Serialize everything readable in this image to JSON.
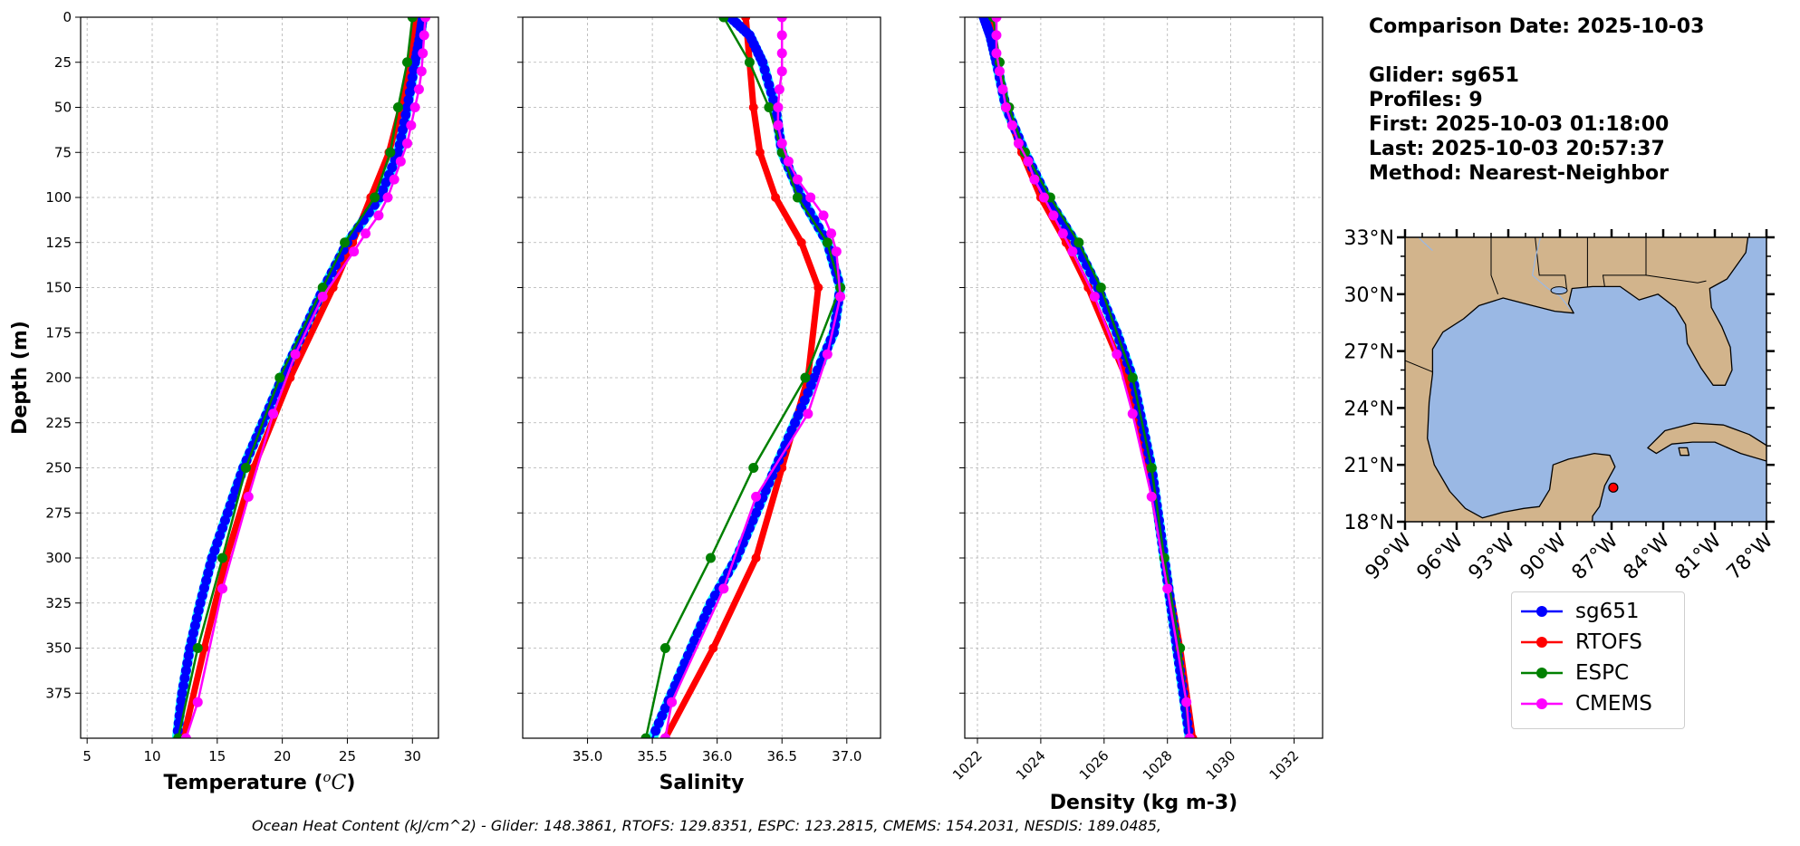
{
  "info": {
    "date_line": "Comparison Date: 2025-10-03",
    "glider_line": "Glider: sg651",
    "profiles_line": "Profiles: 9",
    "first_line": "First: 2025-10-03 01:18:00",
    "last_line": "Last: 2025-10-03 20:57:37",
    "method_line": "Method: Nearest-Neighbor"
  },
  "footer": "Ocean Heat Content (kJ/cm^2) - Glider: 148.3861,  RTOFS: 129.8351,  ESPC: 123.2815,  CMEMS: 154.2031,  NESDIS: 189.0485,",
  "colors": {
    "sg651": "#0000ff",
    "sg651_spread": "#00ffff",
    "RTOFS": "#ff0000",
    "ESPC": "#008000",
    "CMEMS": "#ff00ff",
    "land": "#d2b48c",
    "ocean": "#9ab8e4"
  },
  "legend": [
    {
      "label": "sg651",
      "color": "#0000ff"
    },
    {
      "label": "RTOFS",
      "color": "#ff0000"
    },
    {
      "label": "ESPC",
      "color": "#008000"
    },
    {
      "label": "CMEMS",
      "color": "#ff00ff"
    }
  ],
  "chart_data": [
    {
      "type": "line",
      "panel": "temperature",
      "xlabel": "Temperature (oC)",
      "ylabel": "Depth (m)",
      "xlim": [
        4.5,
        32
      ],
      "ylim": [
        400,
        0
      ],
      "xticks": [
        5,
        10,
        15,
        20,
        25,
        30
      ],
      "yticks": [
        0,
        25,
        50,
        75,
        100,
        125,
        150,
        175,
        200,
        225,
        250,
        275,
        300,
        325,
        350,
        375
      ],
      "grid": true,
      "series": [
        {
          "name": "sg651",
          "depth": [
            0,
            10,
            25,
            50,
            75,
            100,
            125,
            150,
            175,
            200,
            225,
            250,
            275,
            300,
            325,
            350,
            375,
            400
          ],
          "values": [
            30.8,
            30.6,
            30.2,
            29.6,
            28.9,
            27.5,
            25.0,
            23.2,
            21.6,
            20.0,
            18.5,
            17.0,
            15.8,
            14.6,
            13.7,
            12.9,
            12.3,
            11.9
          ]
        },
        {
          "name": "RTOFS",
          "depth": [
            0,
            25,
            50,
            75,
            100,
            125,
            150,
            200,
            250,
            300,
            350,
            400
          ],
          "values": [
            30.3,
            29.9,
            29.1,
            28.2,
            26.8,
            25.4,
            23.9,
            20.6,
            17.8,
            15.7,
            14.0,
            12.4
          ]
        },
        {
          "name": "ESPC",
          "depth": [
            0,
            25,
            50,
            75,
            100,
            125,
            150,
            200,
            250,
            300,
            350,
            400
          ],
          "values": [
            30.0,
            29.6,
            28.9,
            28.3,
            27.1,
            24.8,
            23.1,
            19.8,
            17.2,
            15.4,
            13.5,
            12.0
          ]
        },
        {
          "name": "CMEMS",
          "depth": [
            0,
            10,
            20,
            30,
            40,
            50,
            60,
            70,
            80,
            90,
            100,
            110,
            120,
            130,
            155,
            187,
            220,
            266,
            317,
            380,
            400
          ],
          "values": [
            31.0,
            30.9,
            30.8,
            30.7,
            30.5,
            30.2,
            29.9,
            29.6,
            29.1,
            28.6,
            28.1,
            27.4,
            26.4,
            25.5,
            23.1,
            21.0,
            19.3,
            17.4,
            15.4,
            13.5,
            12.6
          ]
        }
      ]
    },
    {
      "type": "line",
      "panel": "salinity",
      "xlabel": "Salinity",
      "xlim": [
        34.5,
        37.26
      ],
      "ylim": [
        400,
        0
      ],
      "xticks": [
        35.0,
        35.5,
        36.0,
        36.5,
        37.0
      ],
      "grid": true,
      "series": [
        {
          "name": "sg651",
          "depth": [
            0,
            10,
            25,
            50,
            75,
            100,
            125,
            150,
            175,
            200,
            225,
            250,
            275,
            300,
            325,
            350,
            375,
            400
          ],
          "values": [
            36.1,
            36.25,
            36.35,
            36.45,
            36.5,
            36.65,
            36.85,
            36.95,
            36.9,
            36.75,
            36.6,
            36.45,
            36.3,
            36.15,
            35.95,
            35.8,
            35.65,
            35.5
          ]
        },
        {
          "name": "RTOFS",
          "depth": [
            0,
            25,
            50,
            75,
            100,
            125,
            150,
            200,
            250,
            300,
            350,
            400
          ],
          "values": [
            36.22,
            36.25,
            36.28,
            36.33,
            36.45,
            36.65,
            36.78,
            36.7,
            36.5,
            36.3,
            35.97,
            35.6
          ]
        },
        {
          "name": "ESPC",
          "depth": [
            0,
            25,
            50,
            75,
            100,
            125,
            150,
            200,
            250,
            300,
            350,
            400
          ],
          "values": [
            36.05,
            36.25,
            36.4,
            36.5,
            36.62,
            36.85,
            36.95,
            36.68,
            36.28,
            35.95,
            35.6,
            35.45
          ]
        },
        {
          "name": "CMEMS",
          "depth": [
            0,
            10,
            20,
            30,
            40,
            50,
            60,
            70,
            80,
            90,
            100,
            110,
            120,
            130,
            155,
            187,
            220,
            266,
            317,
            380,
            400
          ],
          "values": [
            36.5,
            36.5,
            36.5,
            36.5,
            36.48,
            36.47,
            36.47,
            36.5,
            36.55,
            36.62,
            36.72,
            36.82,
            36.88,
            36.92,
            36.95,
            36.85,
            36.7,
            36.3,
            36.05,
            35.65,
            35.6
          ]
        }
      ]
    },
    {
      "type": "line",
      "panel": "density",
      "xlabel": "Density (kg m-3)",
      "xlim": [
        1021.6,
        1032.9
      ],
      "ylim": [
        400,
        0
      ],
      "xticks": [
        1022,
        1024,
        1026,
        1028,
        1030,
        1032
      ],
      "grid": true,
      "series": [
        {
          "name": "sg651",
          "depth": [
            0,
            10,
            25,
            50,
            75,
            100,
            125,
            150,
            175,
            200,
            225,
            250,
            275,
            300,
            325,
            350,
            375,
            400
          ],
          "values": [
            1022.2,
            1022.4,
            1022.6,
            1022.9,
            1023.5,
            1024.2,
            1025.1,
            1025.8,
            1026.4,
            1026.9,
            1027.2,
            1027.5,
            1027.7,
            1027.9,
            1028.1,
            1028.3,
            1028.5,
            1028.7
          ]
        },
        {
          "name": "RTOFS",
          "depth": [
            0,
            25,
            50,
            75,
            100,
            125,
            150,
            200,
            250,
            300,
            350,
            400
          ],
          "values": [
            1022.4,
            1022.6,
            1022.9,
            1023.4,
            1024.0,
            1024.8,
            1025.5,
            1026.7,
            1027.4,
            1027.9,
            1028.4,
            1028.8
          ]
        },
        {
          "name": "ESPC",
          "depth": [
            0,
            25,
            50,
            75,
            100,
            125,
            150,
            200,
            250,
            300,
            350,
            400
          ],
          "values": [
            1022.5,
            1022.7,
            1023.0,
            1023.5,
            1024.3,
            1025.2,
            1025.9,
            1026.9,
            1027.5,
            1027.9,
            1028.4,
            1028.7
          ]
        },
        {
          "name": "CMEMS",
          "depth": [
            0,
            10,
            20,
            30,
            40,
            50,
            60,
            70,
            80,
            90,
            100,
            110,
            120,
            130,
            155,
            187,
            220,
            266,
            317,
            380,
            400
          ],
          "values": [
            1022.6,
            1022.6,
            1022.6,
            1022.7,
            1022.8,
            1022.9,
            1023.1,
            1023.3,
            1023.6,
            1023.8,
            1024.1,
            1024.4,
            1024.7,
            1025.0,
            1025.7,
            1026.4,
            1026.9,
            1027.5,
            1028.0,
            1028.6,
            1028.7
          ]
        }
      ]
    },
    {
      "type": "map",
      "panel": "location",
      "lon_range": [
        -99,
        -78
      ],
      "lat_range": [
        18,
        33
      ],
      "xticks": [
        "99°W",
        "96°W",
        "93°W",
        "90°W",
        "87°W",
        "84°W",
        "81°W",
        "78°W"
      ],
      "yticks": [
        "33°N",
        "30°N",
        "27°N",
        "24°N",
        "21°N",
        "18°N"
      ],
      "marker": {
        "lon": -86.9,
        "lat": 19.8
      }
    }
  ]
}
